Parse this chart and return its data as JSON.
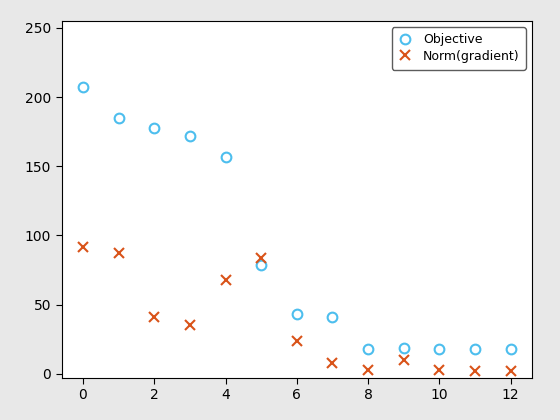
{
  "title": "",
  "objective_x": [
    0,
    1,
    2,
    3,
    4,
    5,
    6,
    7,
    8,
    9,
    10,
    11,
    12
  ],
  "objective_y": [
    207,
    185,
    178,
    172,
    157,
    79,
    43,
    41,
    18,
    19,
    18,
    18,
    18
  ],
  "gradient_x": [
    0,
    1,
    2,
    3,
    4,
    5,
    6,
    7,
    8,
    9,
    10,
    11,
    12
  ],
  "gradient_y": [
    92,
    87,
    41,
    35,
    68,
    84,
    24,
    8,
    3,
    10,
    3,
    2,
    2
  ],
  "objective_color": "#4dbeee",
  "gradient_color": "#d95319",
  "xlim": [
    -0.6,
    12.6
  ],
  "ylim": [
    -3,
    255
  ],
  "xticks": [
    0,
    2,
    4,
    6,
    8,
    10,
    12
  ],
  "yticks": [
    0,
    50,
    100,
    150,
    200,
    250
  ],
  "legend_objective": "Objective",
  "legend_gradient": "Norm(gradient)",
  "marker_objective": "o",
  "marker_gradient": "x",
  "marker_size_obj": 7,
  "marker_size_grad": 7,
  "background_color": "#e8e8e8",
  "axes_background": "#ffffff"
}
